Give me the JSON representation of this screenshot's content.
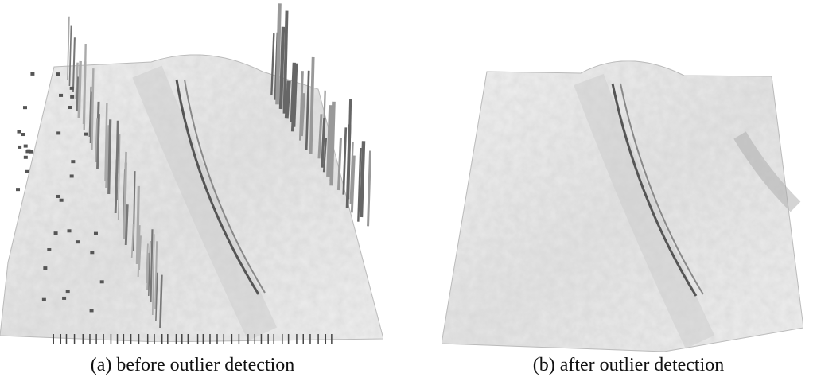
{
  "figure": {
    "subfigures": [
      {
        "caption": "(a) before outlier detection"
      },
      {
        "caption": "(b) after outlier detection"
      }
    ]
  }
}
